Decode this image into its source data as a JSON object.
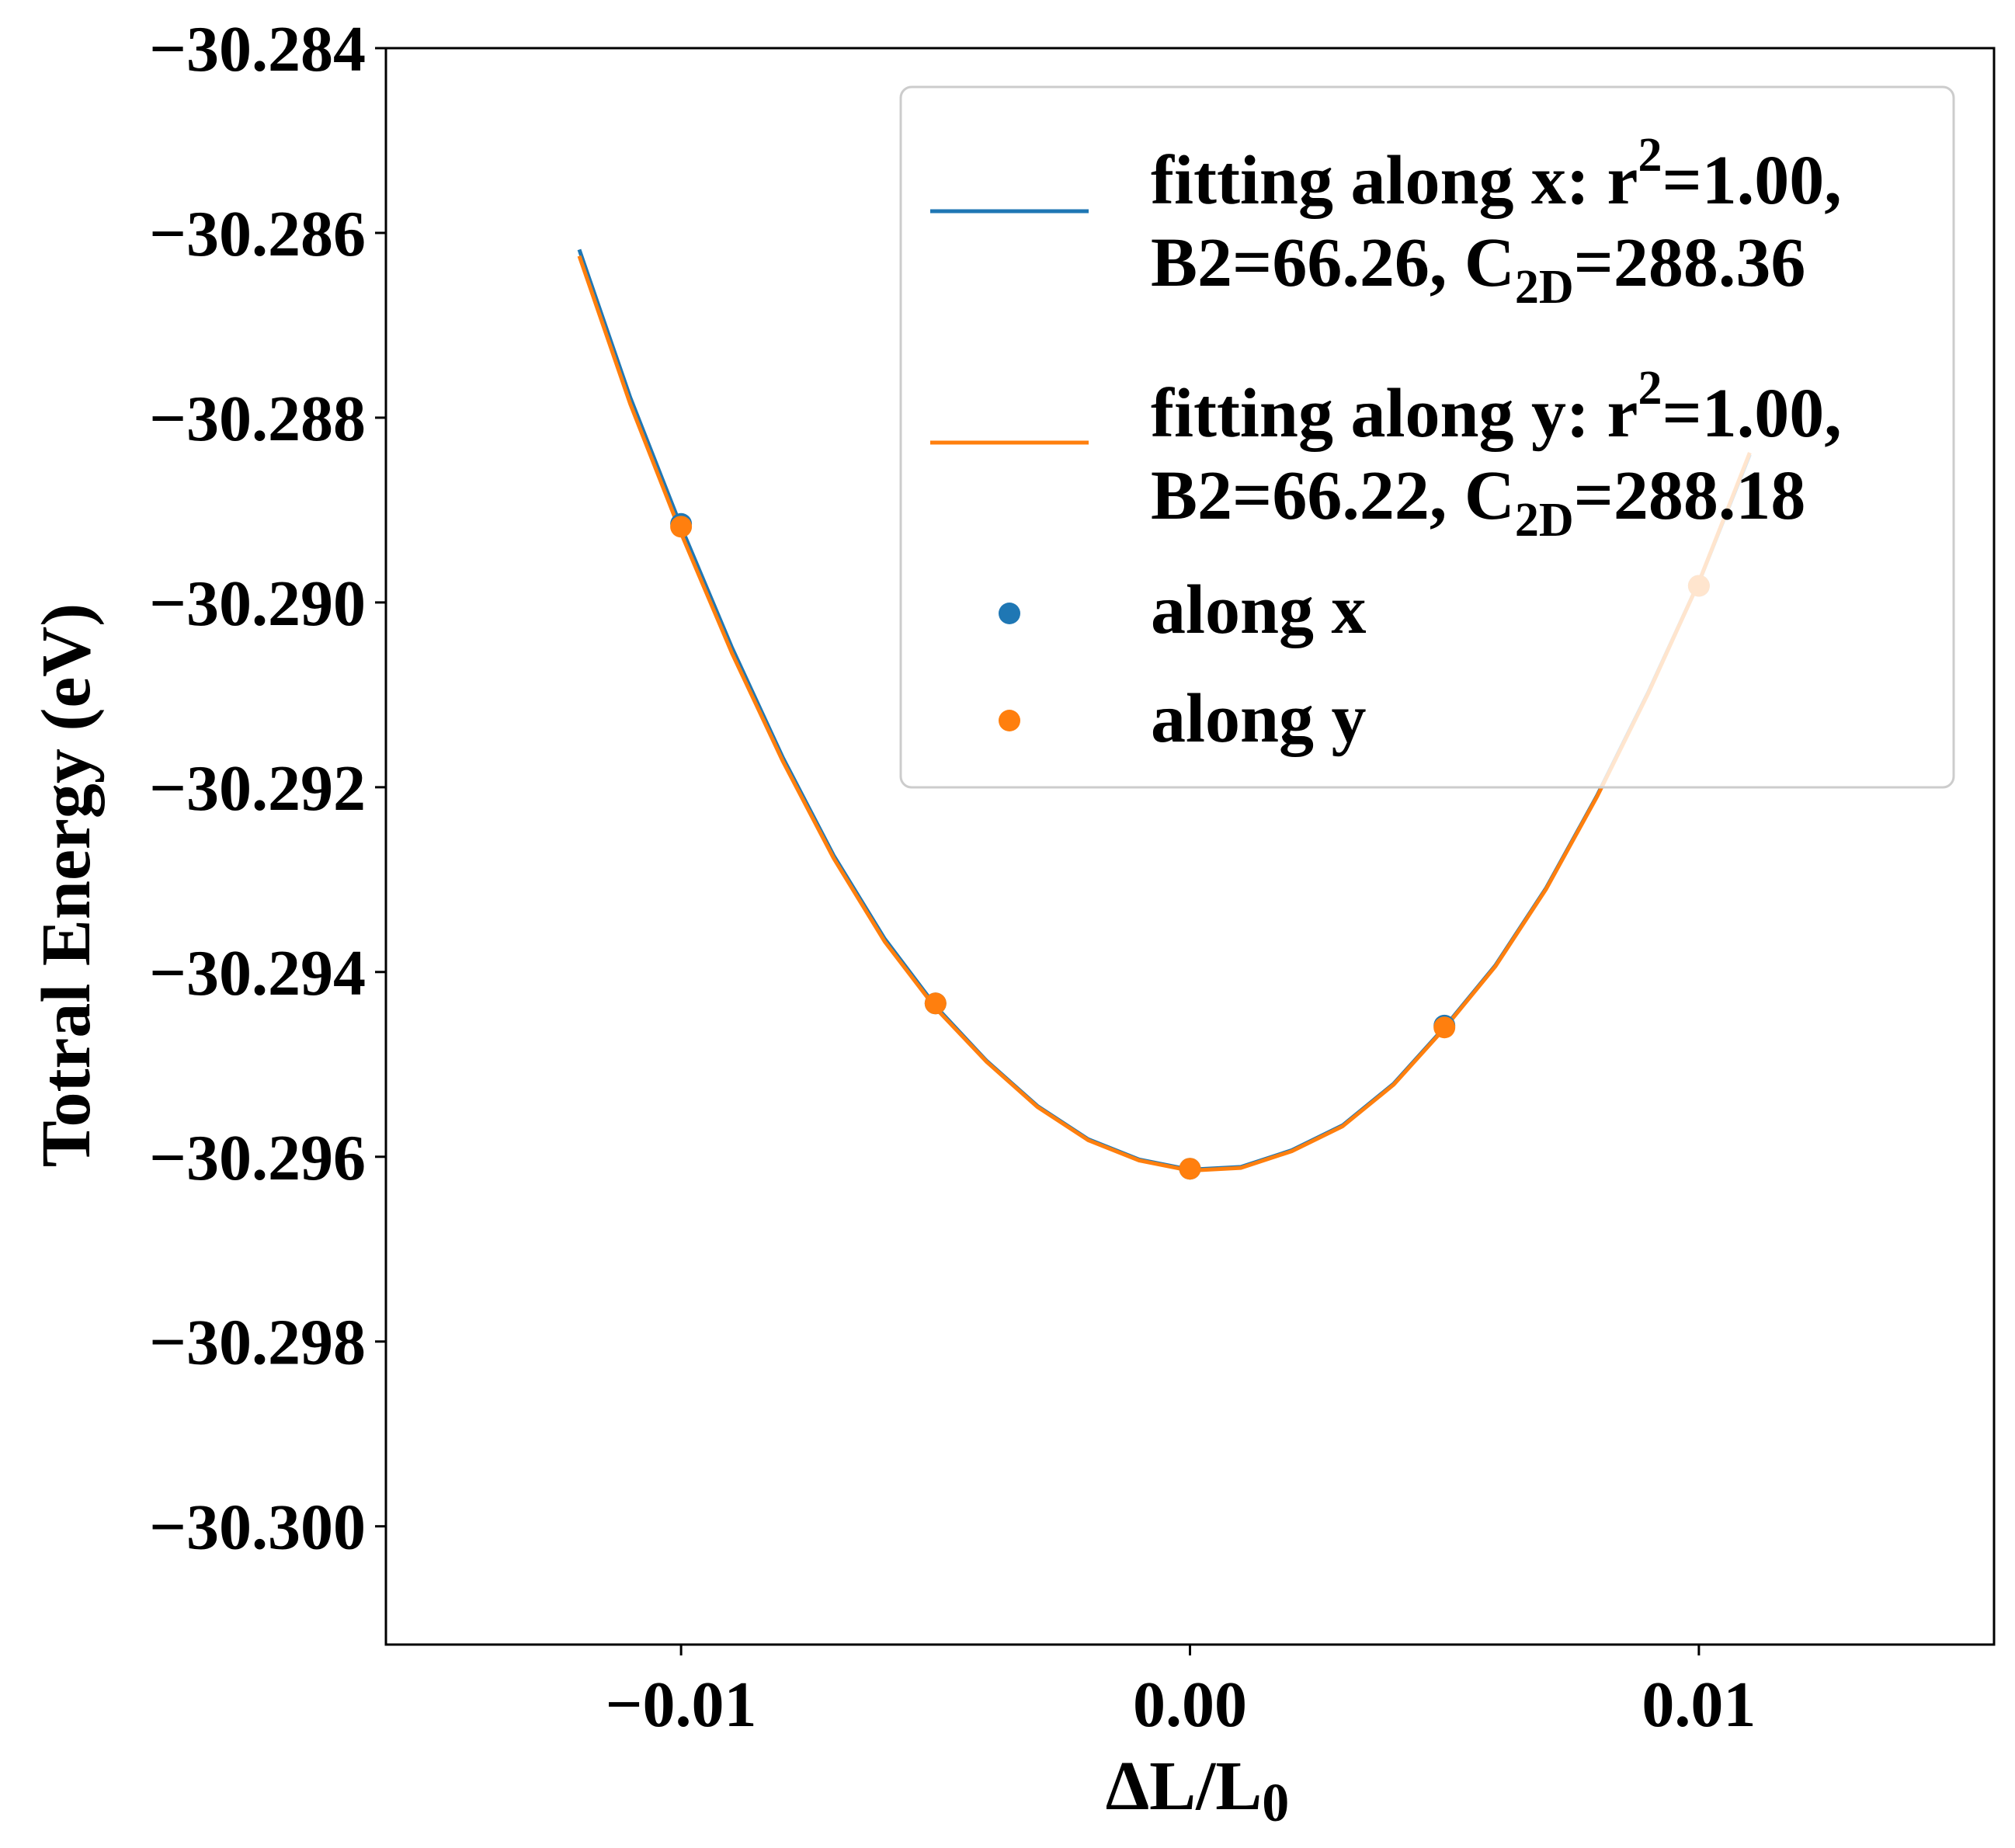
{
  "chart_data": {
    "type": "scatter",
    "xlabel": "ΔL/L₀",
    "ylabel": "Totral Energy (eV)",
    "xlim": [
      -0.0158,
      0.0158
    ],
    "ylim": [
      -30.30128,
      -30.284
    ],
    "x_ticks": [
      -0.01,
      0.0,
      0.01
    ],
    "x_tick_labels": [
      "−0.01",
      "0.00",
      "0.01"
    ],
    "y_ticks": [
      -30.284,
      -30.286,
      -30.288,
      -30.29,
      -30.292,
      -30.294,
      -30.296,
      -30.298,
      -30.3
    ],
    "y_tick_labels": [
      "−30.284",
      "−30.286",
      "−30.288",
      "−30.290",
      "−30.292",
      "−30.294",
      "−30.296",
      "−30.298",
      "−30.300"
    ],
    "grid": false,
    "legend_position": "top-right",
    "fit_lines": [
      {
        "name": "fitting along x",
        "color": "#1f77b4",
        "x": [
          -0.012,
          -0.011,
          -0.01,
          -0.009,
          -0.008,
          -0.007,
          -0.006,
          -0.005,
          -0.004,
          -0.003,
          -0.002,
          -0.001,
          0.0,
          0.001,
          0.002,
          0.003,
          0.004,
          0.005,
          0.006,
          0.007,
          0.008,
          0.009,
          0.01,
          0.011
        ],
        "y": [
          -30.28618,
          -30.28778,
          -30.28918,
          -30.29049,
          -30.29168,
          -30.29274,
          -30.29364,
          -30.29437,
          -30.29496,
          -30.29545,
          -30.29581,
          -30.29603,
          -30.29614,
          -30.29611,
          -30.29593,
          -30.29566,
          -30.29521,
          -30.2946,
          -30.29393,
          -30.29309,
          -30.29209,
          -30.29098,
          -30.28978,
          -30.2884
        ]
      },
      {
        "name": "fitting along y",
        "color": "#ff7f0e",
        "x": [
          -0.012,
          -0.011,
          -0.01,
          -0.009,
          -0.008,
          -0.007,
          -0.006,
          -0.005,
          -0.004,
          -0.003,
          -0.002,
          -0.001,
          0.0,
          0.001,
          0.002,
          0.003,
          0.004,
          0.005,
          0.006,
          0.007,
          0.008,
          0.009,
          0.01,
          0.011
        ],
        "y": [
          -30.28625,
          -30.28785,
          -30.28925,
          -30.29055,
          -30.29172,
          -30.29277,
          -30.29367,
          -30.29439,
          -30.29497,
          -30.29546,
          -30.29582,
          -30.29604,
          -30.29615,
          -30.29612,
          -30.29594,
          -30.29567,
          -30.29522,
          -30.29461,
          -30.29394,
          -30.2931,
          -30.2921,
          -30.29099,
          -30.28978,
          -30.28838
        ]
      }
    ],
    "series": [
      {
        "name": "along x",
        "color": "#1f77b4",
        "x": [
          -0.01,
          -0.005,
          0.0,
          0.005,
          0.01
        ],
        "y": [
          -30.28915,
          -30.29434,
          -30.29613,
          -30.29458,
          -30.28982
        ]
      },
      {
        "name": "along y",
        "color": "#ff7f0e",
        "x": [
          -0.01,
          -0.005,
          0.0,
          0.005,
          0.01
        ],
        "y": [
          -30.28918,
          -30.29434,
          -30.29613,
          -30.2946,
          -30.28982
        ]
      }
    ],
    "legend": {
      "entries": [
        {
          "kind": "line",
          "color": "#1f77b4",
          "line1": "fitting along x: r",
          "sup": "2",
          "line1_end": "=1.00,",
          "line2_a": "B2=66.26, C",
          "sub": "2D",
          "line2_b": "=288.36"
        },
        {
          "kind": "line",
          "color": "#ff7f0e",
          "line1": "fitting along y: r",
          "sup": "2",
          "line1_end": "=1.00,",
          "line2_a": "B2=66.22, C",
          "sub": "2D",
          "line2_b": "=288.18"
        },
        {
          "kind": "marker",
          "color": "#1f77b4",
          "label": "along x"
        },
        {
          "kind": "marker",
          "color": "#ff7f0e",
          "label": "along y"
        }
      ]
    }
  }
}
